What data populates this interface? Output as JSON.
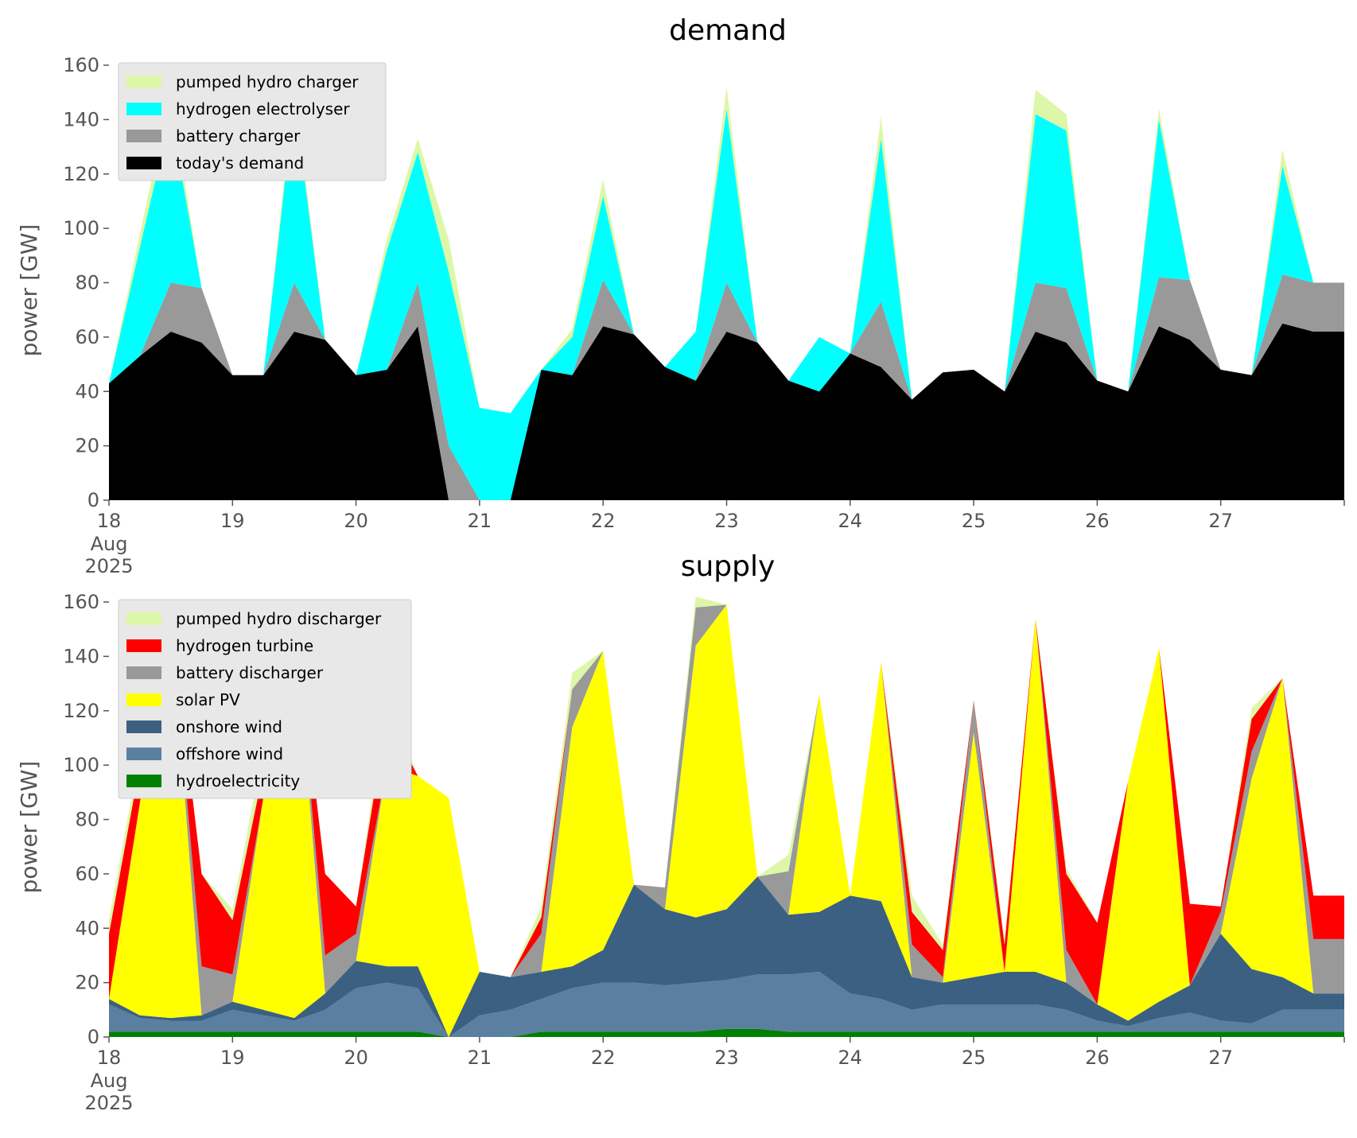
{
  "x_ticks": [
    {
      "label": "18",
      "sub1": "Aug",
      "sub2": "2025"
    },
    {
      "label": "19"
    },
    {
      "label": "20"
    },
    {
      "label": "21"
    },
    {
      "label": "22"
    },
    {
      "label": "23"
    },
    {
      "label": "24"
    },
    {
      "label": "25"
    },
    {
      "label": "26"
    },
    {
      "label": "27"
    }
  ],
  "chart_data": [
    {
      "type": "area",
      "title": "demand",
      "ylabel": "power [GW]",
      "xlabel": "",
      "x_start": "2025-08-18 00:00",
      "x_step_hours": 6,
      "xlim": [
        "2025-08-18",
        "2025-08-28"
      ],
      "ylim": [
        0,
        160
      ],
      "yticks": [
        0,
        20,
        40,
        60,
        80,
        100,
        120,
        140,
        160
      ],
      "grid": false,
      "legend_position": "top-left",
      "legend_order": [
        "pumped hydro charger",
        "hydrogen electrolyser",
        "battery charger",
        "today's demand"
      ],
      "series": [
        {
          "name": "today's demand",
          "color": "#000000",
          "values": [
            43,
            53,
            62,
            58,
            46,
            46,
            62,
            59,
            46,
            48,
            64,
            0,
            0,
            0,
            48,
            46,
            64,
            61,
            49,
            44,
            62,
            58,
            44,
            40,
            54,
            49,
            37,
            47,
            48,
            40,
            62,
            58,
            44,
            40,
            64,
            59,
            48,
            46,
            65,
            62
          ]
        },
        {
          "name": "battery charger",
          "color": "#999999",
          "values": [
            0,
            0,
            18,
            20,
            0,
            0,
            18,
            0,
            0,
            0,
            16,
            20,
            0,
            0,
            0,
            0,
            17,
            0,
            0,
            0,
            18,
            0,
            0,
            0,
            0,
            24,
            0,
            0,
            0,
            0,
            18,
            20,
            0,
            0,
            18,
            22,
            0,
            0,
            18,
            18
          ]
        },
        {
          "name": "hydrogen electrolyser",
          "color": "#00ffff",
          "values": [
            0,
            40,
            62,
            0,
            0,
            0,
            68,
            0,
            0,
            44,
            48,
            64,
            34,
            32,
            0,
            14,
            31,
            0,
            0,
            18,
            64,
            0,
            0,
            20,
            0,
            60,
            0,
            0,
            0,
            0,
            62,
            58,
            0,
            0,
            58,
            0,
            0,
            0,
            40,
            0
          ]
        },
        {
          "name": "pumped hydro charger",
          "color": "#ddf7a8",
          "values": [
            0,
            5,
            8,
            0,
            0,
            0,
            5,
            0,
            0,
            4,
            5,
            12,
            0,
            0,
            0,
            3,
            6,
            0,
            0,
            0,
            8,
            0,
            0,
            0,
            0,
            8,
            0,
            0,
            0,
            0,
            9,
            6,
            0,
            0,
            4,
            0,
            0,
            0,
            6,
            0
          ]
        }
      ]
    },
    {
      "type": "area",
      "title": "supply",
      "ylabel": "power [GW]",
      "xlabel": "",
      "x_start": "2025-08-18 00:00",
      "x_step_hours": 6,
      "xlim": [
        "2025-08-18",
        "2025-08-28"
      ],
      "ylim": [
        0,
        160
      ],
      "yticks": [
        0,
        20,
        40,
        60,
        80,
        100,
        120,
        140,
        160
      ],
      "grid": false,
      "legend_position": "top-left",
      "legend_order": [
        "pumped hydro discharger",
        "hydrogen turbine",
        "battery discharger",
        "solar PV",
        "onshore wind",
        "offshore wind",
        "hydroelectricity"
      ],
      "series": [
        {
          "name": "hydroelectricity",
          "color": "#008000",
          "values": [
            2,
            2,
            2,
            2,
            2,
            2,
            2,
            2,
            2,
            2,
            2,
            0,
            0,
            0,
            2,
            2,
            2,
            2,
            2,
            2,
            3,
            3,
            2,
            2,
            2,
            2,
            2,
            2,
            2,
            2,
            2,
            2,
            2,
            2,
            2,
            2,
            2,
            2,
            2,
            2
          ]
        },
        {
          "name": "offshore wind",
          "color": "#5b7fa0",
          "values": [
            10,
            5,
            4,
            4,
            8,
            6,
            4,
            8,
            16,
            18,
            16,
            0,
            8,
            10,
            12,
            16,
            18,
            18,
            17,
            18,
            18,
            20,
            21,
            22,
            14,
            12,
            8,
            10,
            10,
            10,
            10,
            8,
            4,
            2,
            5,
            7,
            4,
            3,
            8,
            8
          ]
        },
        {
          "name": "onshore wind",
          "color": "#3b6082",
          "values": [
            2,
            1,
            1,
            2,
            3,
            2,
            1,
            6,
            10,
            6,
            8,
            0,
            16,
            12,
            10,
            8,
            12,
            36,
            28,
            24,
            26,
            36,
            22,
            22,
            36,
            36,
            12,
            8,
            10,
            12,
            12,
            10,
            6,
            2,
            6,
            10,
            32,
            20,
            12,
            6
          ]
        },
        {
          "name": "solar PV",
          "color": "#ffff00",
          "values": [
            0,
            78,
            148,
            0,
            0,
            78,
            150,
            0,
            0,
            74,
            70,
            88,
            0,
            0,
            0,
            88,
            110,
            0,
            0,
            100,
            112,
            0,
            0,
            80,
            0,
            88,
            0,
            0,
            90,
            0,
            130,
            0,
            0,
            88,
            130,
            0,
            0,
            70,
            110,
            0
          ]
        },
        {
          "name": "battery discharger",
          "color": "#999999",
          "values": [
            0,
            0,
            0,
            18,
            10,
            0,
            0,
            14,
            10,
            0,
            0,
            0,
            0,
            0,
            14,
            14,
            0,
            0,
            8,
            14,
            0,
            0,
            16,
            0,
            0,
            0,
            12,
            2,
            12,
            0,
            0,
            12,
            0,
            0,
            0,
            0,
            8,
            10,
            0,
            20
          ]
        },
        {
          "name": "hydrogen turbine",
          "color": "#ff0000",
          "values": [
            24,
            14,
            0,
            34,
            20,
            10,
            0,
            30,
            10,
            18,
            0,
            0,
            0,
            0,
            6,
            0,
            0,
            0,
            0,
            0,
            0,
            0,
            0,
            0,
            0,
            0,
            12,
            10,
            0,
            10,
            0,
            28,
            30,
            0,
            0,
            30,
            2,
            12,
            0,
            16
          ]
        },
        {
          "name": "pumped hydro discharger",
          "color": "#ddf7a8",
          "values": [
            5,
            5,
            0,
            0,
            4,
            8,
            0,
            0,
            0,
            8,
            0,
            0,
            0,
            0,
            4,
            6,
            0,
            0,
            0,
            4,
            0,
            0,
            6,
            0,
            0,
            0,
            6,
            2,
            0,
            2,
            0,
            2,
            0,
            0,
            0,
            0,
            0,
            4,
            0,
            0
          ]
        }
      ]
    }
  ]
}
